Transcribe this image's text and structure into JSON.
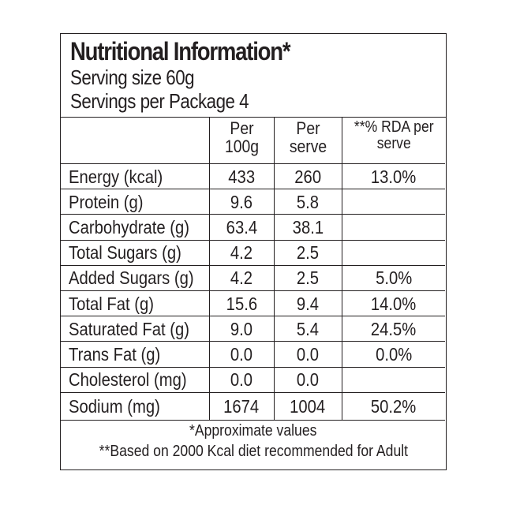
{
  "panel": {
    "title": "Nutritional Information*",
    "serving_size": "Serving size 60g",
    "servings_per_package": "Servings per Package 4"
  },
  "columns": {
    "per_100g": "Per 100g",
    "per_serve": "Per serve",
    "rda": "**% RDA per serve"
  },
  "rows": [
    {
      "nutrient": "Energy (kcal)",
      "per_100g": "433",
      "per_serve": "260",
      "rda": "13.0%"
    },
    {
      "nutrient": "Protein (g)",
      "per_100g": "9.6",
      "per_serve": "5.8",
      "rda": ""
    },
    {
      "nutrient": "Carbohydrate (g)",
      "per_100g": "63.4",
      "per_serve": "38.1",
      "rda": ""
    },
    {
      "nutrient": "Total Sugars (g)",
      "per_100g": "4.2",
      "per_serve": "2.5",
      "rda": ""
    },
    {
      "nutrient": "Added Sugars (g)",
      "per_100g": "4.2",
      "per_serve": "2.5",
      "rda": "5.0%"
    },
    {
      "nutrient": "Total Fat (g)",
      "per_100g": "15.6",
      "per_serve": "9.4",
      "rda": "14.0%"
    },
    {
      "nutrient": "Saturated Fat (g)",
      "per_100g": "9.0",
      "per_serve": "5.4",
      "rda": "24.5%"
    },
    {
      "nutrient": "Trans Fat (g)",
      "per_100g": "0.0",
      "per_serve": "0.0",
      "rda": "0.0%"
    },
    {
      "nutrient": "Cholesterol (mg)",
      "per_100g": "0.0",
      "per_serve": "0.0",
      "rda": ""
    },
    {
      "nutrient": "Sodium (mg)",
      "per_100g": "1674",
      "per_serve": "1004",
      "rda": "50.2%"
    }
  ],
  "footnotes": {
    "approx": "*Approximate values",
    "basis": "**Based on 2000 Kcal diet recommended for Adult"
  }
}
